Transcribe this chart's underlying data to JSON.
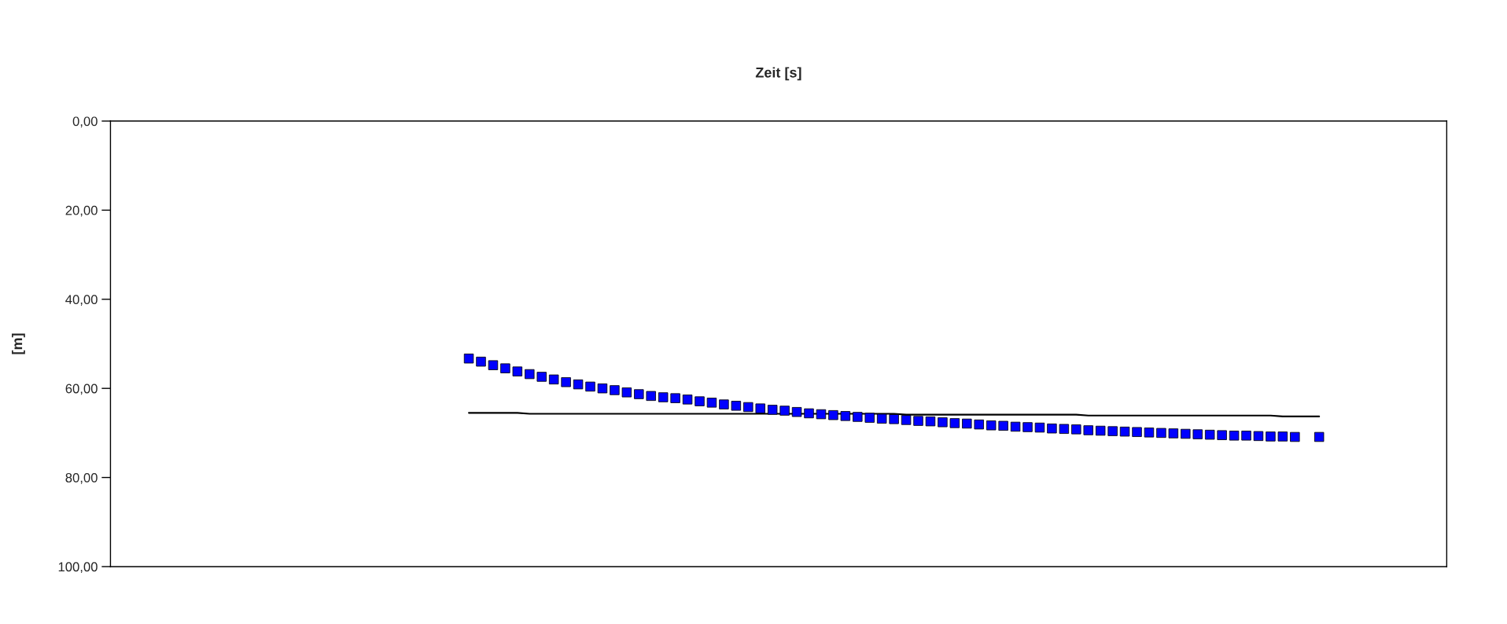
{
  "chart_data": {
    "type": "scatter",
    "xlabel": "Zeit [s]",
    "ylabel": "[m]",
    "categories": [
      null,
      null,
      null,
      null,
      null,
      null,
      null,
      null,
      null,
      null,
      null,
      null,
      null,
      null,
      null,
      null,
      null,
      null,
      null,
      null,
      null,
      null,
      null,
      null,
      null,
      null,
      null,
      null,
      null,
      null,
      null,
      null,
      null,
      null,
      null,
      null,
      null,
      null,
      null,
      null,
      null,
      null,
      null,
      null,
      null,
      null,
      null,
      null,
      null,
      null,
      null,
      null,
      null,
      null,
      null,
      null,
      null,
      null,
      null,
      null,
      null,
      null,
      null,
      null,
      null,
      null,
      null,
      null,
      null,
      null,
      null,
      null,
      null,
      null,
      null,
      null,
      null,
      null,
      null,
      null,
      null,
      null,
      null,
      null,
      null,
      null,
      null,
      null,
      null,
      null,
      null,
      null,
      null,
      null,
      null,
      null,
      null,
      null,
      null,
      null,
      null,
      null,
      null,
      null,
      null,
      null,
      null,
      null,
      null,
      null
    ],
    "series": [
      {
        "color": "#0000ff",
        "marker": "square",
        "values": [
          null,
          null,
          null,
          null,
          null,
          null,
          null,
          null,
          null,
          null,
          null,
          null,
          null,
          null,
          null,
          null,
          null,
          null,
          null,
          null,
          null,
          null,
          null,
          null,
          null,
          null,
          null,
          null,
          null,
          53.3,
          54.0,
          54.8,
          55.5,
          56.2,
          56.8,
          57.4,
          58.0,
          58.6,
          59.1,
          59.6,
          60.0,
          60.4,
          60.9,
          61.3,
          61.7,
          62.0,
          62.2,
          62.5,
          62.9,
          63.2,
          63.6,
          63.9,
          64.2,
          64.5,
          64.8,
          65.0,
          65.3,
          65.6,
          65.8,
          66.0,
          66.2,
          66.4,
          66.6,
          66.8,
          66.9,
          67.1,
          67.3,
          67.4,
          67.6,
          67.8,
          67.9,
          68.1,
          68.3,
          68.4,
          68.6,
          68.7,
          68.8,
          69.0,
          69.1,
          69.2,
          69.4,
          69.5,
          69.6,
          69.7,
          69.8,
          69.9,
          70.0,
          70.1,
          70.2,
          70.3,
          70.4,
          70.5,
          70.6,
          70.6,
          70.7,
          70.8,
          70.8,
          70.9,
          null,
          70.9,
          null,
          null,
          null,
          null,
          null,
          null,
          null,
          null,
          null,
          null
        ]
      },
      {
        "type": "line",
        "color": "#000000",
        "marker": "none",
        "line_style": "solid",
        "values": [
          null,
          null,
          null,
          null,
          null,
          null,
          null,
          null,
          null,
          null,
          null,
          null,
          null,
          null,
          null,
          null,
          null,
          null,
          null,
          null,
          null,
          null,
          null,
          null,
          null,
          null,
          null,
          null,
          null,
          65.5,
          65.5,
          65.5,
          65.5,
          65.5,
          65.7,
          65.7,
          65.7,
          65.7,
          65.7,
          65.7,
          65.7,
          65.7,
          65.7,
          65.7,
          65.7,
          65.7,
          65.7,
          65.7,
          65.7,
          65.7,
          65.7,
          65.7,
          65.7,
          65.7,
          65.7,
          65.7,
          65.7,
          65.7,
          65.7,
          65.7,
          65.7,
          65.7,
          65.7,
          65.7,
          65.7,
          65.9,
          65.9,
          65.9,
          65.9,
          65.9,
          65.9,
          65.9,
          65.9,
          65.9,
          65.9,
          65.9,
          65.9,
          65.9,
          65.9,
          65.9,
          66.1,
          66.1,
          66.1,
          66.1,
          66.1,
          66.1,
          66.1,
          66.1,
          66.1,
          66.1,
          66.1,
          66.1,
          66.1,
          66.1,
          66.1,
          66.1,
          66.3,
          66.3,
          66.3,
          66.3,
          null,
          null,
          null,
          null,
          null,
          null,
          null,
          null,
          null,
          null
        ]
      }
    ],
    "ylim": [
      100,
      0
    ],
    "yticks": [
      {
        "value": 0,
        "label": "0,00"
      },
      {
        "value": 20,
        "label": "20,00"
      },
      {
        "value": 40,
        "label": "40,00"
      },
      {
        "value": 60,
        "label": "60,00"
      },
      {
        "value": 80,
        "label": "80,00"
      },
      {
        "value": 100,
        "label": "100,00"
      }
    ],
    "tick_labels": "y",
    "grid": false,
    "legend": false
  }
}
